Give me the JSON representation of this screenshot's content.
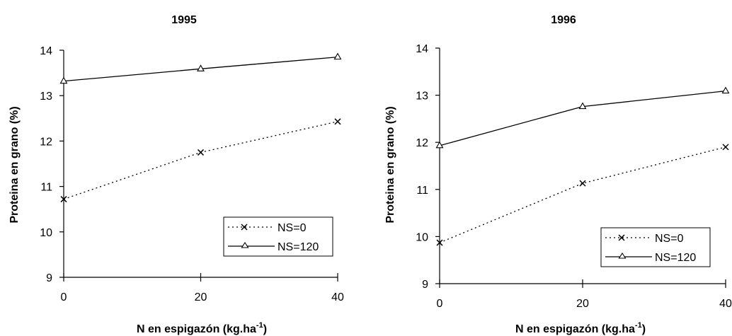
{
  "chart_data": [
    {
      "type": "line",
      "title": "1995",
      "xlabel": "N en espigazón (kg.ha",
      "xlabel_sup": "-1",
      "xlabel_close": ")",
      "ylabel": "Proteina en grano (%)",
      "x": [
        0,
        20,
        40
      ],
      "xlim": [
        0,
        40
      ],
      "ylim": [
        9,
        14
      ],
      "xticks": [
        "0",
        "20",
        "40"
      ],
      "yticks": [
        "9",
        "10",
        "11",
        "12",
        "13",
        "14"
      ],
      "grid": false,
      "legend_position": "bottom-right",
      "series": [
        {
          "name": "NS=0",
          "values": [
            10.72,
            11.75,
            12.43
          ],
          "marker": "x",
          "line_style": "dotted"
        },
        {
          "name": "NS=120",
          "values": [
            13.32,
            13.59,
            13.85
          ],
          "marker": "triangle",
          "line_style": "solid"
        }
      ]
    },
    {
      "type": "line",
      "title": "1996",
      "xlabel": "N en espigazón (kg.ha",
      "xlabel_sup": "-1",
      "xlabel_close": ")",
      "ylabel": "Proteina en grano (%)",
      "x": [
        0,
        20,
        40
      ],
      "xlim": [
        0,
        40
      ],
      "ylim": [
        9,
        14
      ],
      "xticks": [
        "0",
        "20",
        "40"
      ],
      "yticks": [
        "9",
        "10",
        "11",
        "12",
        "13",
        "14"
      ],
      "grid": false,
      "legend_position": "bottom-right",
      "series": [
        {
          "name": "NS=0",
          "values": [
            9.87,
            11.13,
            11.9
          ],
          "marker": "x",
          "line_style": "dotted"
        },
        {
          "name": "NS=120",
          "values": [
            11.93,
            12.76,
            13.09
          ],
          "marker": "triangle",
          "line_style": "solid"
        }
      ]
    }
  ]
}
